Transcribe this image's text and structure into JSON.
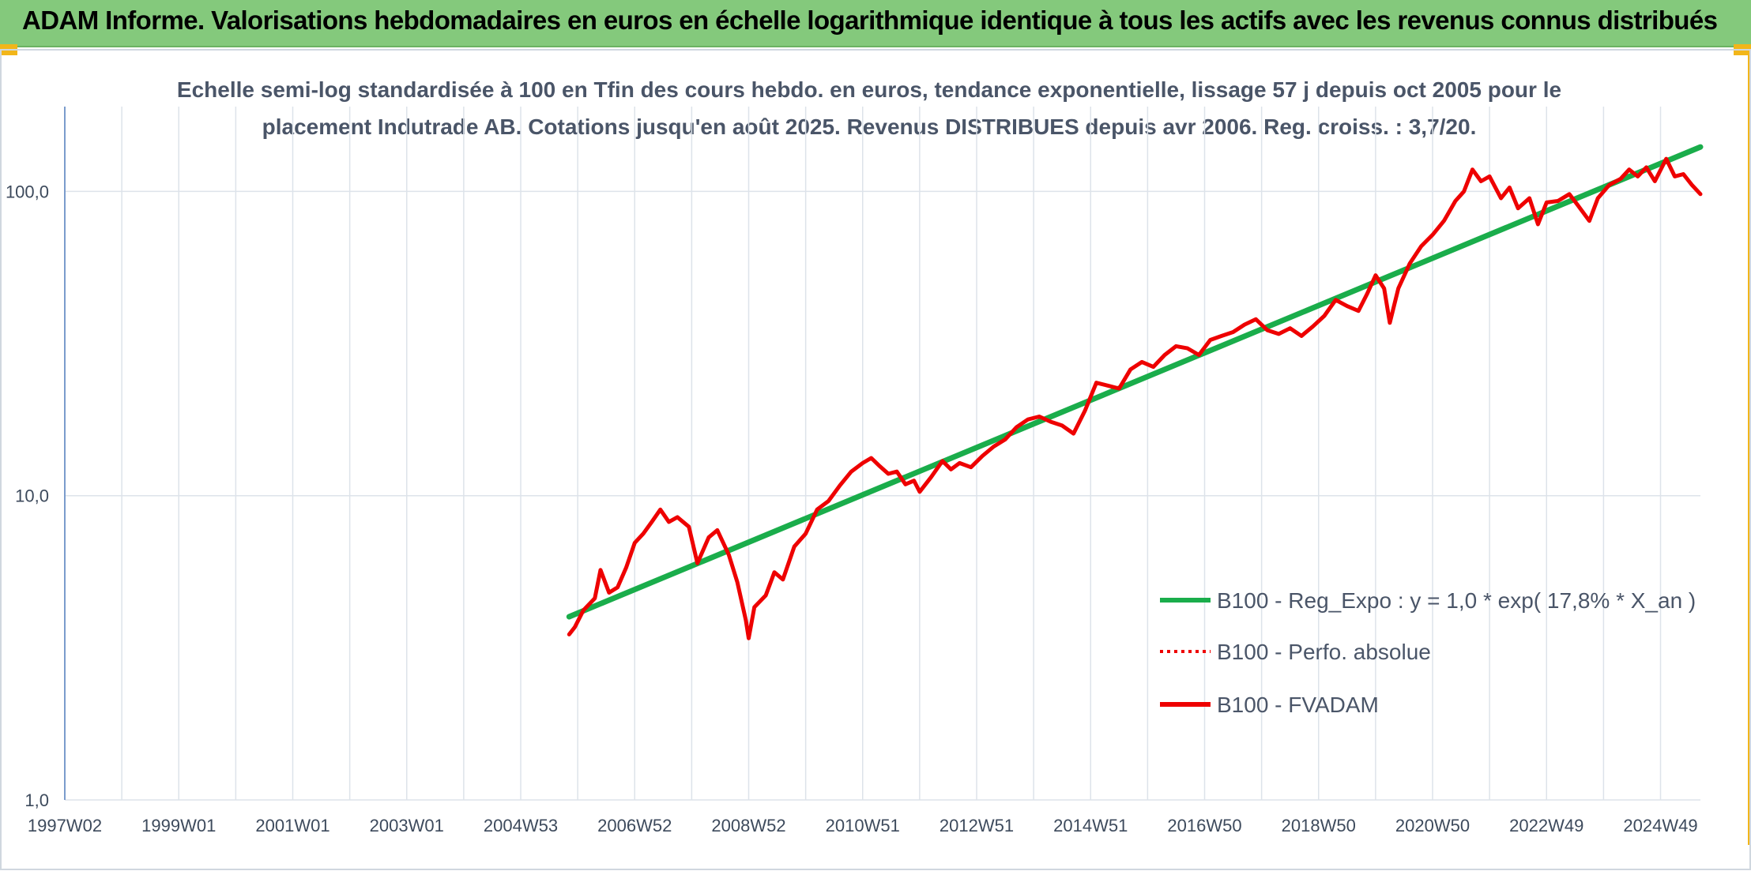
{
  "banner": {
    "title": "ADAM Informe. Valorisations hebdomadaires en euros en échelle logarithmique identique à tous les actifs avec les revenus connus distribués"
  },
  "colors": {
    "banner_bg": "#84c97c",
    "accent_corner": "#f2b61a",
    "trend_line": "#1aad4b",
    "price_line": "#ee0000",
    "grid": "#dde3ea",
    "axis": "#7b9ccc"
  },
  "chart_data": {
    "type": "line",
    "title_lines": [
      "Echelle semi-log standardisée à 100 en Tfin des cours hebdo. en euros, tendance exponentielle, lissage 57 j depuis oct 2005 pour le",
      "placement Indutrade AB. Cotations jusqu'en août 2025. Revenus DISTRIBUES depuis avr 2006. Reg. croiss. : 3,7/20."
    ],
    "xlabel": "",
    "ylabel": "",
    "yscale": "log",
    "ylim": [
      1,
      190
    ],
    "xlim": [
      1997.0,
      2025.7
    ],
    "y_ticks": [
      {
        "value": 1,
        "label": "1,0"
      },
      {
        "value": 10,
        "label": "10,0"
      },
      {
        "value": 100,
        "label": "100,0"
      }
    ],
    "x_ticks": [
      {
        "value": 1997.0,
        "label": "1997W02"
      },
      {
        "value": 1999.0,
        "label": "1999W01"
      },
      {
        "value": 2001.0,
        "label": "2001W01"
      },
      {
        "value": 2003.0,
        "label": "2003W01"
      },
      {
        "value": 2005.0,
        "label": "2004W53"
      },
      {
        "value": 2007.0,
        "label": "2006W52"
      },
      {
        "value": 2009.0,
        "label": "2008W52"
      },
      {
        "value": 2011.0,
        "label": "2010W51"
      },
      {
        "value": 2013.0,
        "label": "2012W51"
      },
      {
        "value": 2015.0,
        "label": "2014W51"
      },
      {
        "value": 2017.0,
        "label": "2016W50"
      },
      {
        "value": 2019.0,
        "label": "2018W50"
      },
      {
        "value": 2021.0,
        "label": "2020W50"
      },
      {
        "value": 2023.0,
        "label": "2022W49"
      },
      {
        "value": 2025.0,
        "label": "2024W49"
      }
    ],
    "minor_gridlines_x": [
      1998.0,
      2000.0,
      2002.0,
      2004.0,
      2006.0,
      2008.0,
      2010.0,
      2012.0,
      2014.0,
      2016.0,
      2018.0,
      2020.0,
      2022.0,
      2024.0
    ],
    "grid": true,
    "legend_position": "right",
    "legend": [
      {
        "label": "B100 - Reg_Expo : y = 1,0 * exp( 17,8% *  X_an )",
        "style": "solid",
        "color": "#1aad4b"
      },
      {
        "label": "B100 - Perfo. absolue",
        "style": "dotted",
        "color": "#ee0000"
      },
      {
        "label": "B100 - FVADAM",
        "style": "solid",
        "color": "#ee0000"
      }
    ],
    "series": [
      {
        "name": "B100 - Reg_Expo : y = 1,0 * exp( 17,8% *  X_an )",
        "kind": "trend",
        "x": [
          2005.85,
          2025.7
        ],
        "y": [
          4.0,
          140
        ]
      },
      {
        "name": "B100 - FVADAM",
        "kind": "price",
        "x": [
          2005.85,
          2005.95,
          2006.1,
          2006.3,
          2006.4,
          2006.55,
          2006.7,
          2006.85,
          2007.0,
          2007.15,
          2007.3,
          2007.45,
          2007.6,
          2007.75,
          2007.95,
          2008.1,
          2008.3,
          2008.45,
          2008.65,
          2008.8,
          2008.95,
          2009.0,
          2009.1,
          2009.3,
          2009.45,
          2009.6,
          2009.8,
          2010.0,
          2010.2,
          2010.4,
          2010.6,
          2010.8,
          2011.0,
          2011.15,
          2011.3,
          2011.45,
          2011.6,
          2011.75,
          2011.9,
          2012.0,
          2012.2,
          2012.4,
          2012.55,
          2012.7,
          2012.9,
          2013.1,
          2013.3,
          2013.5,
          2013.7,
          2013.9,
          2014.1,
          2014.3,
          2014.5,
          2014.7,
          2014.9,
          2015.1,
          2015.3,
          2015.5,
          2015.7,
          2015.9,
          2016.1,
          2016.3,
          2016.5,
          2016.7,
          2016.9,
          2017.1,
          2017.3,
          2017.5,
          2017.7,
          2017.9,
          2018.1,
          2018.3,
          2018.5,
          2018.7,
          2018.9,
          2019.1,
          2019.3,
          2019.5,
          2019.7,
          2019.85,
          2020.0,
          2020.15,
          2020.25,
          2020.4,
          2020.6,
          2020.8,
          2021.0,
          2021.2,
          2021.4,
          2021.55,
          2021.7,
          2021.85,
          2022.0,
          2022.2,
          2022.35,
          2022.5,
          2022.7,
          2022.85,
          2023.0,
          2023.2,
          2023.4,
          2023.55,
          2023.75,
          2023.9,
          2024.1,
          2024.3,
          2024.45,
          2024.6,
          2024.75,
          2024.9,
          2025.1,
          2025.25,
          2025.4,
          2025.55,
          2025.7
        ],
        "y": [
          3.5,
          3.7,
          4.2,
          4.6,
          5.7,
          4.8,
          5.0,
          5.8,
          7.0,
          7.5,
          8.2,
          9.0,
          8.2,
          8.5,
          7.9,
          6.0,
          7.3,
          7.7,
          6.4,
          5.2,
          3.9,
          3.4,
          4.3,
          4.7,
          5.6,
          5.3,
          6.8,
          7.5,
          9.0,
          9.6,
          10.8,
          12.0,
          12.8,
          13.3,
          12.5,
          11.8,
          12.0,
          10.9,
          11.2,
          10.3,
          11.5,
          13.0,
          12.2,
          12.8,
          12.4,
          13.5,
          14.5,
          15.3,
          16.8,
          17.8,
          18.2,
          17.5,
          17.0,
          16.0,
          19.0,
          23.5,
          23.0,
          22.5,
          26.0,
          27.5,
          26.5,
          29.0,
          31.0,
          30.5,
          29.0,
          32.5,
          33.5,
          34.5,
          36.5,
          38.0,
          35.0,
          34.0,
          35.5,
          33.5,
          36.0,
          39.0,
          44.0,
          42.0,
          40.5,
          46.0,
          53.0,
          48.0,
          37.0,
          48.0,
          58.0,
          66.0,
          72.0,
          80.0,
          93.0,
          100.0,
          118.0,
          108.0,
          112.0,
          95.0,
          103.0,
          88.0,
          95.0,
          78.0,
          92.0,
          93.0,
          98.0,
          90.0,
          80.0,
          95.0,
          105.0,
          110.0,
          118.0,
          112.0,
          120.0,
          108.0,
          128.0,
          112.0,
          114.0,
          105.0,
          98.0
        ]
      }
    ]
  }
}
